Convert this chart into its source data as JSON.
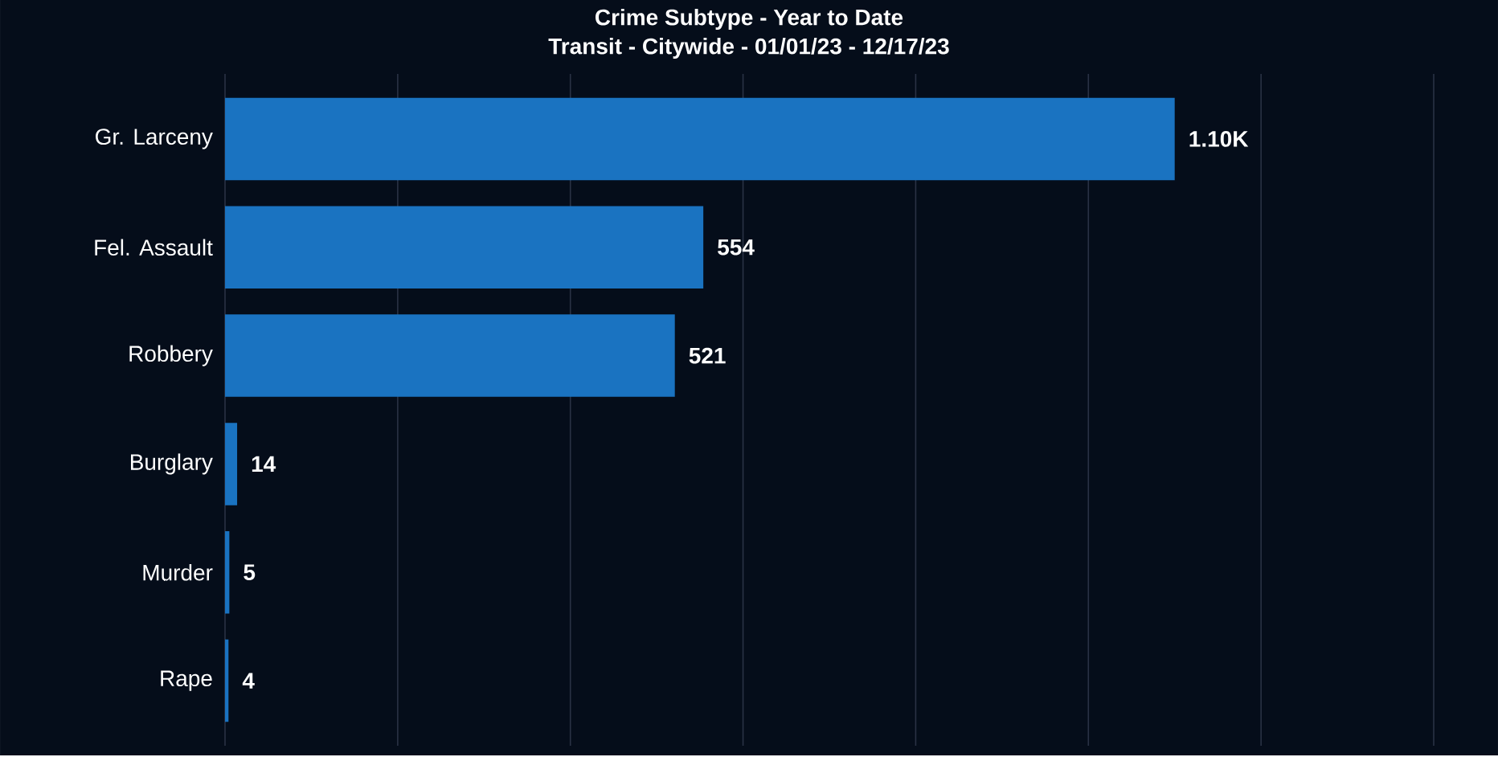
{
  "chart_data": {
    "type": "bar",
    "orientation": "horizontal",
    "title": "Crime Subtype - Year to Date",
    "subtitle": "Transit - Citywide - 01/01/23 - 12/17/23",
    "categories": [
      "Gr. Larceny",
      "Fel. Assault",
      "Robbery",
      "Burglary",
      "Murder",
      "Rape"
    ],
    "values": [
      1100,
      554,
      521,
      14,
      5,
      4
    ],
    "value_labels": [
      "1.10K",
      "554",
      "521",
      "14",
      "5",
      "4"
    ],
    "color": "#1a73c1",
    "xlim": [
      0,
      1400
    ],
    "xticks": [
      {
        "value": 0,
        "label": null
      },
      {
        "value": 200,
        "label": null
      },
      {
        "value": 400,
        "label": null
      },
      {
        "value": 600,
        "label": null
      },
      {
        "value": 800,
        "label": null
      },
      {
        "value": 1000,
        "label": null
      },
      {
        "value": 1200,
        "label": null
      },
      {
        "value": 1400,
        "label": null
      }
    ],
    "grid": "x",
    "tick_labels": "y"
  }
}
